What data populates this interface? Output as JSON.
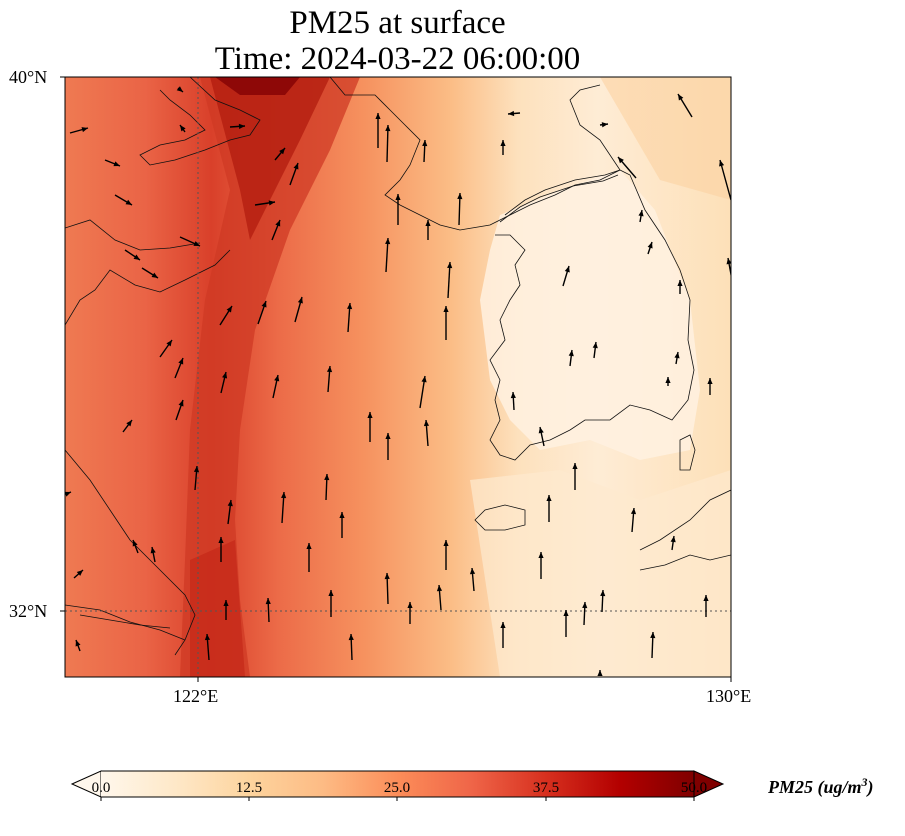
{
  "title": {
    "line1": "PM25 at surface",
    "line2": "Time: 2024-03-22 06:00:00"
  },
  "map": {
    "lat_labels": [
      "40°N",
      "32°N"
    ],
    "lon_labels": [
      "122°E",
      "130°E"
    ],
    "extent": {
      "lon_min": 120,
      "lon_max": 130,
      "lat_min": 31,
      "lat_max": 40
    },
    "gridlines": {
      "lon": 122,
      "lat": 32,
      "style": "dotted"
    }
  },
  "colorbar": {
    "label": "PM25 (ug/m",
    "label_sup": "3",
    "label_close": ")",
    "ticks": [
      "0.0",
      "12.5",
      "25.0",
      "37.5",
      "50.0"
    ],
    "min": 0,
    "max": 50,
    "colormap": "OrRd",
    "colors": [
      "#fff7ec",
      "#fee8c8",
      "#fdd49e",
      "#fdbb84",
      "#fc8d59",
      "#ef6548",
      "#d7301f",
      "#b30000",
      "#7f0000"
    ]
  }
}
